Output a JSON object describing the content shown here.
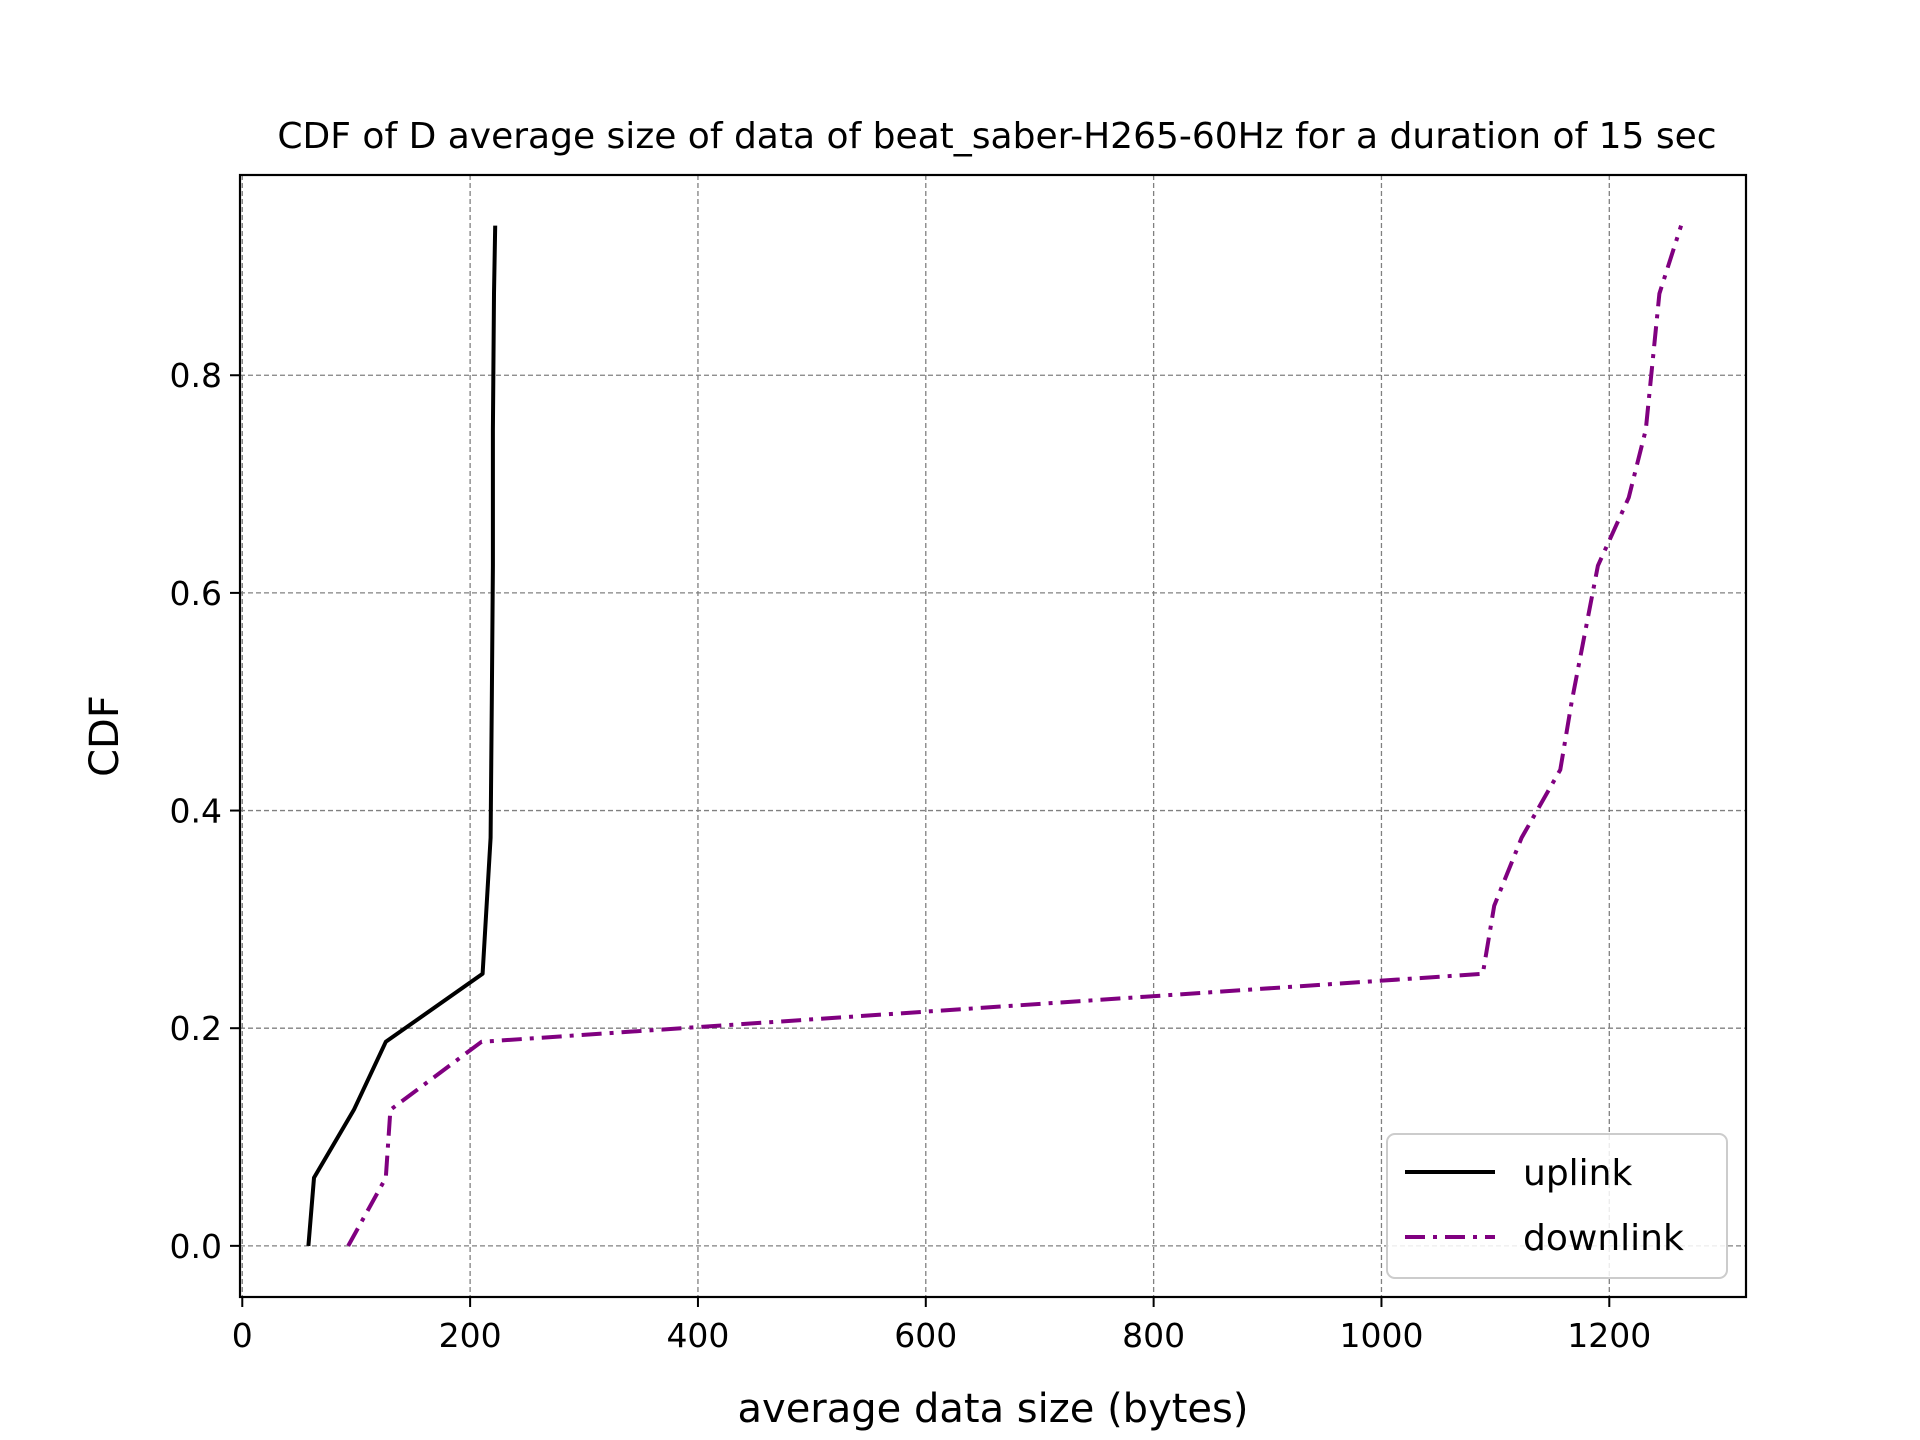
{
  "chart_data": {
    "type": "line",
    "title": "CDF of D average size of data of beat_saber-H265-60Hz for a duration of 15 sec",
    "xlabel": "average data size (bytes)",
    "ylabel": "CDF",
    "xlim": [
      -2,
      1320
    ],
    "ylim": [
      -0.047,
      0.984
    ],
    "xticks": [
      0,
      200,
      400,
      600,
      800,
      1000,
      1200
    ],
    "yticks": [
      0.0,
      0.2,
      0.4,
      0.6,
      0.8
    ],
    "xtick_labels": [
      "0",
      "200",
      "400",
      "600",
      "800",
      "1000",
      "1200"
    ],
    "ytick_labels": [
      "0.0",
      "0.2",
      "0.4",
      "0.6",
      "0.8"
    ],
    "grid": true,
    "legend_position": "lower-right",
    "series": [
      {
        "name": "uplink",
        "color": "#000000",
        "style": "solid",
        "points": [
          [
            58,
            0.0
          ],
          [
            63,
            0.0625
          ],
          [
            98,
            0.125
          ],
          [
            126,
            0.1875
          ],
          [
            211,
            0.25
          ],
          [
            218,
            0.375
          ],
          [
            219,
            0.5
          ],
          [
            220,
            0.625
          ],
          [
            220,
            0.75
          ],
          [
            221,
            0.875
          ],
          [
            222,
            0.9375
          ]
        ]
      },
      {
        "name": "downlink",
        "color": "#800080",
        "style": "dashdot",
        "points": [
          [
            93,
            0.0
          ],
          [
            126,
            0.0625
          ],
          [
            130,
            0.125
          ],
          [
            210,
            0.1875
          ],
          [
            1089,
            0.25
          ],
          [
            1099,
            0.3125
          ],
          [
            1123,
            0.375
          ],
          [
            1157,
            0.4375
          ],
          [
            1167,
            0.5
          ],
          [
            1190,
            0.625
          ],
          [
            1217,
            0.6875
          ],
          [
            1232,
            0.75
          ],
          [
            1244,
            0.875
          ],
          [
            1263,
            0.9375
          ]
        ]
      }
    ]
  }
}
